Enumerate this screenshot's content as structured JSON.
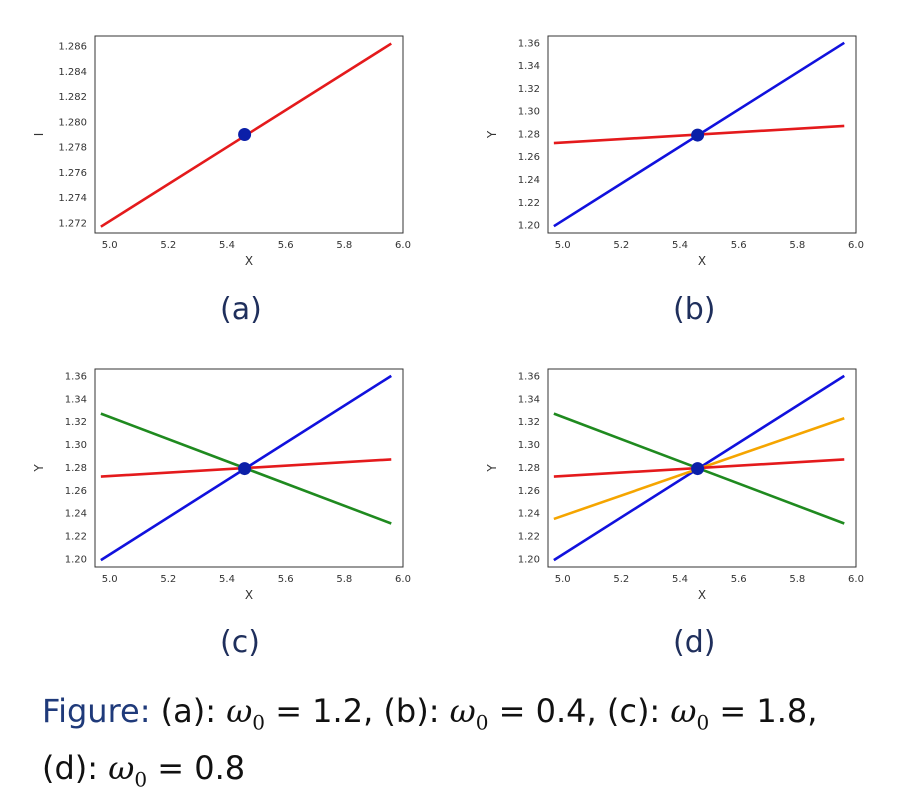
{
  "chart_data": [
    {
      "type": "line",
      "panel": "a",
      "xlabel": "X",
      "ylabel": "I",
      "xlim": [
        4.95,
        6.0
      ],
      "ylim": [
        1.2712,
        1.2868
      ],
      "xticks": [
        "5.0",
        "5.2",
        "5.4",
        "5.6",
        "5.8",
        "6.0"
      ],
      "yticks": [
        "1.272",
        "1.274",
        "1.276",
        "1.278",
        "1.280",
        "1.282",
        "1.284",
        "1.286"
      ],
      "series": [
        {
          "color": "#e41a1c",
          "x": [
            4.97,
            5.96
          ],
          "y": [
            1.2717,
            1.2862
          ]
        }
      ],
      "points": [
        {
          "x": 5.46,
          "y": 1.279,
          "color": "#0b1fa8"
        }
      ],
      "grid": false
    },
    {
      "type": "line",
      "panel": "b",
      "xlabel": "X",
      "ylabel": "Y",
      "xlim": [
        4.95,
        6.0
      ],
      "ylim": [
        1.193,
        1.366
      ],
      "xticks": [
        "5.0",
        "5.2",
        "5.4",
        "5.6",
        "5.8",
        "6.0"
      ],
      "yticks": [
        "1.20",
        "1.22",
        "1.24",
        "1.26",
        "1.28",
        "1.30",
        "1.32",
        "1.34",
        "1.36"
      ],
      "series": [
        {
          "color": "#1111dd",
          "x": [
            4.97,
            5.96
          ],
          "y": [
            1.199,
            1.36
          ]
        },
        {
          "color": "#e41a1c",
          "x": [
            4.97,
            5.96
          ],
          "y": [
            1.272,
            1.287
          ]
        }
      ],
      "points": [
        {
          "x": 5.46,
          "y": 1.279,
          "color": "#0b1fa8"
        }
      ],
      "grid": false
    },
    {
      "type": "line",
      "panel": "c",
      "xlabel": "X",
      "ylabel": "Y",
      "xlim": [
        4.95,
        6.0
      ],
      "ylim": [
        1.193,
        1.366
      ],
      "xticks": [
        "5.0",
        "5.2",
        "5.4",
        "5.6",
        "5.8",
        "6.0"
      ],
      "yticks": [
        "1.20",
        "1.22",
        "1.24",
        "1.26",
        "1.28",
        "1.30",
        "1.32",
        "1.34",
        "1.36"
      ],
      "series": [
        {
          "color": "#1111dd",
          "x": [
            4.97,
            5.96
          ],
          "y": [
            1.199,
            1.36
          ]
        },
        {
          "color": "#1f8a1f",
          "x": [
            4.97,
            5.96
          ],
          "y": [
            1.327,
            1.231
          ]
        },
        {
          "color": "#e41a1c",
          "x": [
            4.97,
            5.96
          ],
          "y": [
            1.272,
            1.287
          ]
        }
      ],
      "points": [
        {
          "x": 5.46,
          "y": 1.279,
          "color": "#0b1fa8"
        }
      ],
      "grid": false
    },
    {
      "type": "line",
      "panel": "d",
      "xlabel": "X",
      "ylabel": "Y",
      "xlim": [
        4.95,
        6.0
      ],
      "ylim": [
        1.193,
        1.366
      ],
      "xticks": [
        "5.0",
        "5.2",
        "5.4",
        "5.6",
        "5.8",
        "6.0"
      ],
      "yticks": [
        "1.20",
        "1.22",
        "1.24",
        "1.26",
        "1.28",
        "1.30",
        "1.32",
        "1.34",
        "1.36"
      ],
      "series": [
        {
          "color": "#1111dd",
          "x": [
            4.97,
            5.96
          ],
          "y": [
            1.199,
            1.36
          ]
        },
        {
          "color": "#1f8a1f",
          "x": [
            4.97,
            5.96
          ],
          "y": [
            1.327,
            1.231
          ]
        },
        {
          "color": "#f5a500",
          "x": [
            4.97,
            5.96
          ],
          "y": [
            1.235,
            1.323
          ]
        },
        {
          "color": "#e41a1c",
          "x": [
            4.97,
            5.96
          ],
          "y": [
            1.272,
            1.287
          ]
        }
      ],
      "points": [
        {
          "x": 5.46,
          "y": 1.279,
          "color": "#0b1fa8"
        }
      ],
      "grid": false
    }
  ],
  "panel_labels": [
    "(a)",
    "(b)",
    "(c)",
    "(d)"
  ],
  "caption": {
    "prefix": "Figure:",
    "line1": "(a): ω₀ = 1.2, (b): ω₀ = 0.4, (c): ω₀ = 1.8,",
    "line2": "(d): ω₀ = 0.8"
  }
}
